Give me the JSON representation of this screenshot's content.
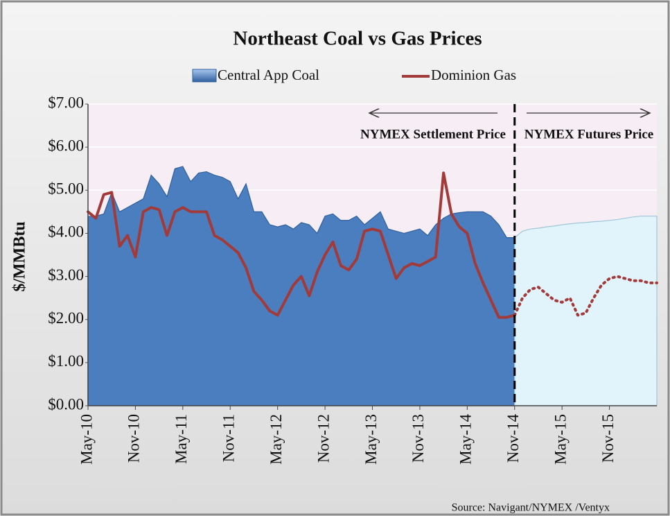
{
  "chart_data": {
    "type": "area_line",
    "title": "Northeast Coal vs Gas Prices",
    "ylabel": "$/MMBtu",
    "source": "Source: Navigant/NYMEX /Ventyx",
    "annotations": [
      "NYMEX Settlement Price",
      "NYMEX Futures Price"
    ],
    "divider_at": 54,
    "categories": [
      "May-10",
      null,
      null,
      null,
      null,
      null,
      "Nov-10",
      null,
      null,
      null,
      null,
      null,
      "May-11",
      null,
      null,
      null,
      null,
      null,
      "Nov-11",
      null,
      null,
      null,
      null,
      null,
      "May-12",
      null,
      null,
      null,
      null,
      null,
      "Nov-12",
      null,
      null,
      null,
      null,
      null,
      "May-13",
      null,
      null,
      null,
      null,
      null,
      "Nov-13",
      null,
      null,
      null,
      null,
      null,
      "May-14",
      null,
      null,
      null,
      null,
      null,
      "Nov-14",
      null,
      null,
      null,
      null,
      null,
      "May-15",
      null,
      null,
      null,
      null,
      null,
      "Nov-15",
      null,
      null,
      null,
      null,
      null,
      null
    ],
    "series": [
      {
        "name": "Central App Coal",
        "kind": "area",
        "color": "#4a7ebf",
        "futures_color": "#e1f4fb",
        "values": [
          4.39,
          4.4,
          4.45,
          4.95,
          4.5,
          4.6,
          4.7,
          4.8,
          5.35,
          5.15,
          4.85,
          5.5,
          5.55,
          5.2,
          5.4,
          5.43,
          5.35,
          5.3,
          5.2,
          4.8,
          5.15,
          4.5,
          4.5,
          4.2,
          4.15,
          4.2,
          4.1,
          4.25,
          4.2,
          4.0,
          4.4,
          4.45,
          4.3,
          4.3,
          4.4,
          4.2,
          4.35,
          4.5,
          4.1,
          4.05,
          4.0,
          4.05,
          4.1,
          3.95,
          4.2,
          4.35,
          4.45,
          4.48,
          4.5,
          4.5,
          4.5,
          4.4,
          4.2,
          3.9,
          3.9,
          4.05,
          4.1,
          4.12,
          4.15,
          4.17,
          4.2,
          4.22,
          4.24,
          4.25,
          4.27,
          4.28,
          4.3,
          4.32,
          4.35,
          4.38,
          4.4,
          4.4,
          4.4
        ]
      },
      {
        "name": "Dominion Gas",
        "kind": "line",
        "color": "#a33a3a",
        "values": [
          4.5,
          4.35,
          4.9,
          4.95,
          3.7,
          3.95,
          3.45,
          4.5,
          4.6,
          4.55,
          3.95,
          4.5,
          4.6,
          4.5,
          4.5,
          4.5,
          3.95,
          3.85,
          3.7,
          3.55,
          3.2,
          2.65,
          2.45,
          2.2,
          2.1,
          2.45,
          2.8,
          3.0,
          2.55,
          3.1,
          3.5,
          3.8,
          3.25,
          3.15,
          3.4,
          4.05,
          4.1,
          4.05,
          3.5,
          2.95,
          3.2,
          3.3,
          3.25,
          3.35,
          3.45,
          5.4,
          4.45,
          4.15,
          4.0,
          3.3,
          2.85,
          2.45,
          2.05,
          2.05,
          2.1,
          2.5,
          2.7,
          2.75,
          2.6,
          2.45,
          2.4,
          2.5,
          2.1,
          2.15,
          2.5,
          2.8,
          2.95,
          3.0,
          2.95,
          2.9,
          2.9,
          2.85,
          2.85
        ]
      }
    ],
    "ylim": [
      0,
      7
    ],
    "yticks": [
      {
        "value": 0,
        "label": "$0.00"
      },
      {
        "value": 1,
        "label": "$1.00"
      },
      {
        "value": 2,
        "label": "$2.00"
      },
      {
        "value": 3,
        "label": "$3.00"
      },
      {
        "value": 4,
        "label": "$4.00"
      },
      {
        "value": 5,
        "label": "$5.00"
      },
      {
        "value": 6,
        "label": "$6.00"
      },
      {
        "value": 7,
        "label": "$7.00"
      }
    ],
    "grid": true
  }
}
